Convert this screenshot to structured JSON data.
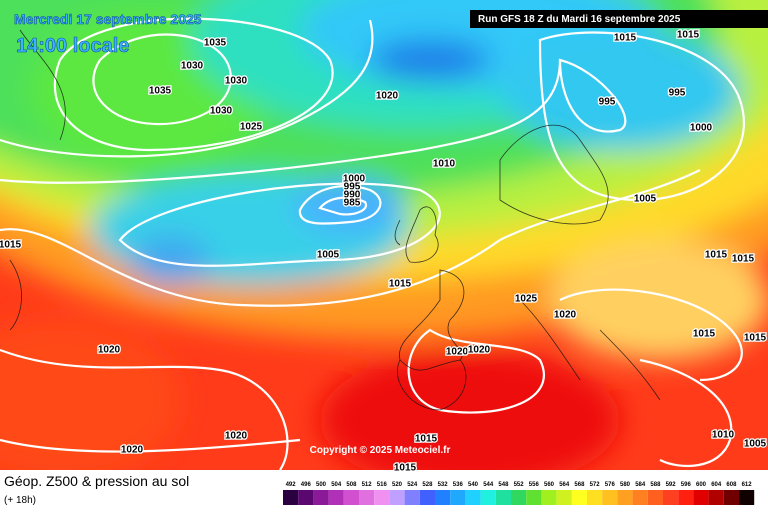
{
  "header": {
    "date": "Mercredi 17 septembre 2025",
    "time": "14:00 locale",
    "run": "Run GFS 18 Z du Mardi 16 septembre 2025"
  },
  "isobar_labels": [
    1035,
    1030,
    1030,
    1035,
    1030,
    1025,
    1020,
    1015,
    1015,
    995,
    995,
    1000,
    1010,
    1000,
    995,
    990,
    985,
    1005,
    1015,
    1005,
    1015,
    1015,
    1015,
    1025,
    1020,
    1015,
    1015,
    1020,
    1020,
    1020,
    1020,
    1020,
    1015,
    1015,
    1010,
    1005
  ],
  "copyright": "Copyright © 2025 Meteociel.fr",
  "legend": {
    "title": "Géop. Z500 & pression au sol",
    "subtitle": "(+ 18h)",
    "scale": [
      492,
      496,
      500,
      504,
      508,
      512,
      516,
      520,
      524,
      528,
      532,
      536,
      540,
      544,
      548,
      552,
      556,
      560,
      564,
      568,
      572,
      576,
      580,
      584,
      588,
      592,
      596,
      600,
      604,
      608,
      612
    ]
  }
}
